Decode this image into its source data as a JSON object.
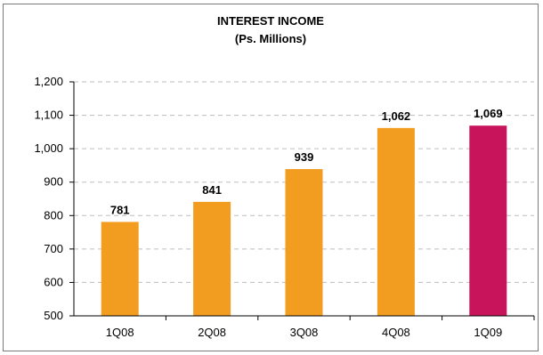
{
  "chart_data": {
    "type": "bar",
    "title": "INTEREST INCOME",
    "subtitle": "(Ps. Millions)",
    "categories": [
      "1Q08",
      "2Q08",
      "3Q08",
      "4Q08",
      "1Q09"
    ],
    "values": [
      781,
      841,
      939,
      1062,
      1069
    ],
    "data_labels": [
      "781",
      "841",
      "939",
      "1,062",
      "1,069"
    ],
    "ylim": [
      500,
      1200
    ],
    "y_ticks": [
      500,
      600,
      700,
      800,
      900,
      1000,
      1100,
      1200
    ],
    "y_tick_labels": [
      "500",
      "600",
      "700",
      "800",
      "900",
      "1,000",
      "1,100",
      "1,200"
    ],
    "grid": true,
    "legend": "none",
    "colors": {
      "bar": "#f29d1f",
      "highlight_bar": "#c8145a",
      "highlight_index": 4
    }
  }
}
